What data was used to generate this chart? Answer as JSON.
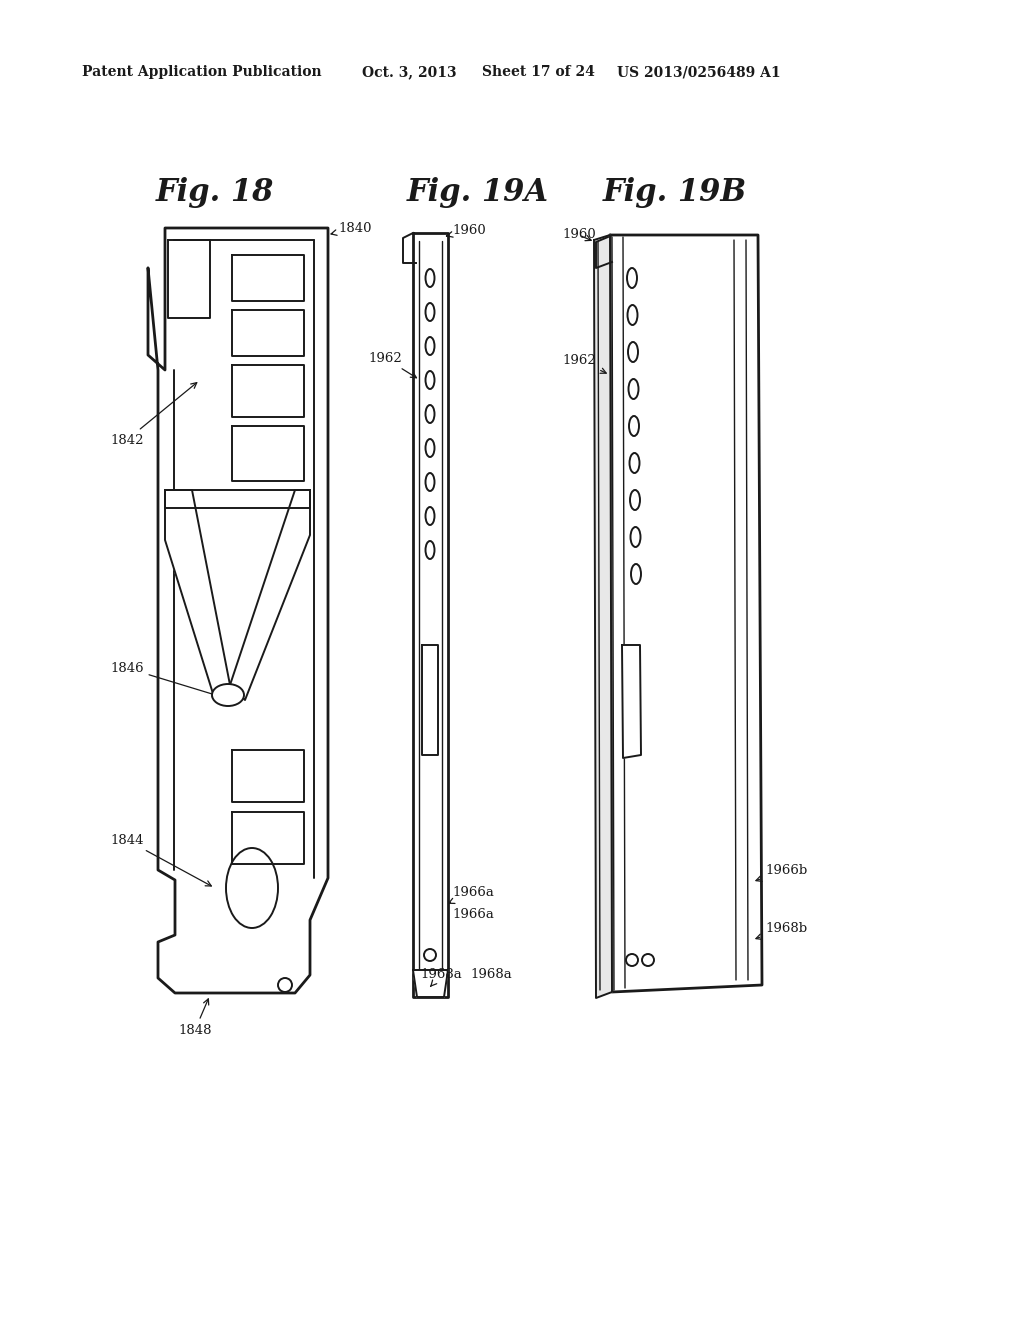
{
  "background_color": "#ffffff",
  "header_text": "Patent Application Publication",
  "header_date": "Oct. 3, 2013",
  "header_sheet": "Sheet 17 of 24",
  "header_patent": "US 2013/0256489 A1",
  "fig18_title": "Fig. 18",
  "fig19a_title": "Fig. 19A",
  "fig19b_title": "Fig. 19B",
  "line_color": "#1a1a1a",
  "lw_main": 2.0,
  "lw_inner": 1.4,
  "lw_thin": 1.0,
  "font_size_header": 10,
  "font_size_title": 22,
  "font_size_label": 9.5
}
